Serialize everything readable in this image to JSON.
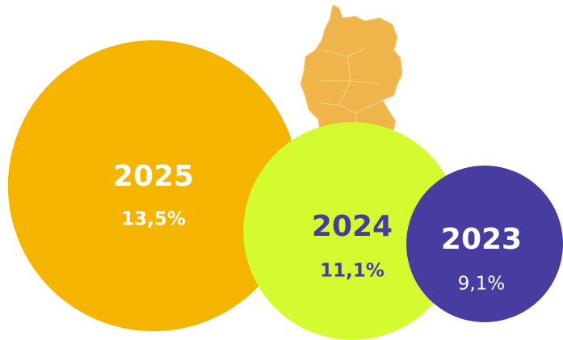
{
  "chart_data": {
    "type": "bubble",
    "categories": [
      "2025",
      "2024",
      "2023"
    ],
    "values": [
      13.5,
      11.1,
      9.1
    ],
    "value_labels": [
      "13,5%",
      "11,1%",
      "9,1%"
    ],
    "colors": [
      "#f4b400",
      "#d4fb2f",
      "#473ca0"
    ],
    "text_colors": [
      "#ffffff",
      "#473ca0",
      "#ffffff"
    ]
  }
}
